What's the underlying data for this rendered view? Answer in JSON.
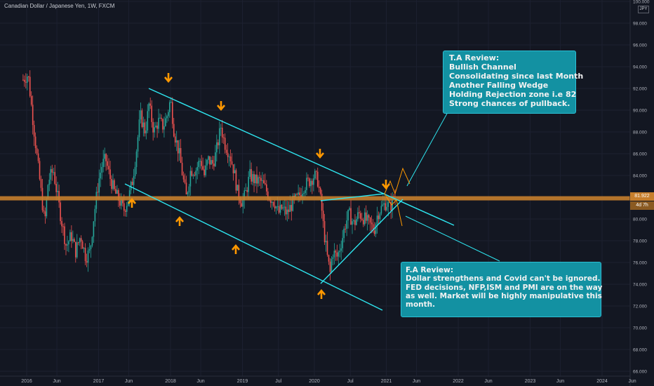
{
  "header": {
    "title": "Canadian Dollar / Japanese Yen, 1W, FXCM",
    "currency": "JPY"
  },
  "price_tags": {
    "last": "81.922",
    "countdown": "4d 7h"
  },
  "annotations": {
    "ta_review": [
      "T.A Review:",
      "Bullish Channel",
      "Consolidating since last Month",
      "Another Falling Wedge",
      "Holding Rejection zone i.e 82",
      "Strong chances of pullback."
    ],
    "fa_review": [
      "F.A Review:",
      "Dollar strengthens and Covid can't be ignored.",
      "FED decisions, NFP,ISM and PMI are on the way",
      "as well. Market will be highly manipulative this",
      "month."
    ]
  },
  "colors": {
    "background": "#131722",
    "up": "#26a69a",
    "down": "#ef5350",
    "trendline": "#2ee6f0",
    "zone": "#c67e2c",
    "arrow": "#ff9800",
    "box": "#1391a2"
  },
  "chart_data": {
    "type": "candlestick",
    "title": "Canadian Dollar / Japanese Yen, 1W, FXCM",
    "x_ticks": [
      "2016",
      "Jun",
      "2017",
      "Jun",
      "2018",
      "Jun",
      "2019",
      "Jul",
      "2020",
      "Jul",
      "2021",
      "Jun",
      "2022",
      "Jun",
      "2023",
      "Jun",
      "2024",
      "Jun"
    ],
    "y_ticks": [
      "100.000",
      "98.000",
      "96.000",
      "94.000",
      "92.000",
      "90.000",
      "88.000",
      "86.000",
      "84.000",
      "82.000",
      "80.000",
      "78.000",
      "76.000",
      "74.000",
      "72.000",
      "70.000",
      "68.000",
      "66.000"
    ],
    "ylim": [
      66,
      100
    ],
    "last_price": 81.922,
    "resistance_zone": 81.9,
    "path": [
      [
        2015.95,
        92.8
      ],
      [
        2016.02,
        93.3
      ],
      [
        2016.08,
        89.5
      ],
      [
        2016.13,
        86.5
      ],
      [
        2016.2,
        82.5
      ],
      [
        2016.25,
        79.5
      ],
      [
        2016.3,
        83.5
      ],
      [
        2016.37,
        84.5
      ],
      [
        2016.43,
        82.0
      ],
      [
        2016.48,
        80.0
      ],
      [
        2016.55,
        77.5
      ],
      [
        2016.62,
        78.5
      ],
      [
        2016.68,
        77.0
      ],
      [
        2016.75,
        78.5
      ],
      [
        2016.82,
        76.5
      ],
      [
        2016.88,
        77.0
      ],
      [
        2016.93,
        80.0
      ],
      [
        2017.0,
        83.5
      ],
      [
        2017.05,
        85.0
      ],
      [
        2017.1,
        85.5
      ],
      [
        2017.15,
        84.0
      ],
      [
        2017.22,
        82.5
      ],
      [
        2017.28,
        81.8
      ],
      [
        2017.35,
        80.8
      ],
      [
        2017.42,
        82.0
      ],
      [
        2017.47,
        83.5
      ],
      [
        2017.52,
        86.0
      ],
      [
        2017.58,
        89.5
      ],
      [
        2017.65,
        88.0
      ],
      [
        2017.7,
        90.5
      ],
      [
        2017.77,
        88.0
      ],
      [
        2017.83,
        89.0
      ],
      [
        2017.9,
        88.5
      ],
      [
        2017.95,
        89.5
      ],
      [
        2018.0,
        91.0
      ],
      [
        2018.05,
        88.0
      ],
      [
        2018.12,
        86.0
      ],
      [
        2018.18,
        83.5
      ],
      [
        2018.22,
        82.0
      ],
      [
        2018.28,
        84.5
      ],
      [
        2018.35,
        84.5
      ],
      [
        2018.42,
        85.5
      ],
      [
        2018.47,
        84.0
      ],
      [
        2018.52,
        85.5
      ],
      [
        2018.58,
        85.0
      ],
      [
        2018.63,
        86.0
      ],
      [
        2018.7,
        88.5
      ],
      [
        2018.75,
        87.0
      ],
      [
        2018.82,
        86.0
      ],
      [
        2018.88,
        84.5
      ],
      [
        2018.93,
        82.5
      ],
      [
        2019.0,
        81.5
      ],
      [
        2019.05,
        82.5
      ],
      [
        2019.1,
        84.0
      ],
      [
        2019.18,
        83.5
      ],
      [
        2019.25,
        83.5
      ],
      [
        2019.3,
        83.0
      ],
      [
        2019.38,
        82.0
      ],
      [
        2019.45,
        81.5
      ],
      [
        2019.5,
        80.5
      ],
      [
        2019.55,
        81.0
      ],
      [
        2019.62,
        80.5
      ],
      [
        2019.7,
        81.5
      ],
      [
        2019.78,
        82.0
      ],
      [
        2019.85,
        83.0
      ],
      [
        2019.93,
        83.5
      ],
      [
        2020.0,
        84.0
      ],
      [
        2020.05,
        83.5
      ],
      [
        2020.1,
        81.0
      ],
      [
        2020.13,
        79.0
      ],
      [
        2020.18,
        76.5
      ],
      [
        2020.22,
        75.0
      ],
      [
        2020.25,
        77.0
      ],
      [
        2020.32,
        76.5
      ],
      [
        2020.38,
        78.0
      ],
      [
        2020.43,
        79.5
      ],
      [
        2020.48,
        80.5
      ],
      [
        2020.55,
        79.5
      ],
      [
        2020.62,
        80.5
      ],
      [
        2020.7,
        80.0
      ],
      [
        2020.77,
        79.5
      ],
      [
        2020.83,
        79.0
      ],
      [
        2020.88,
        80.5
      ],
      [
        2020.93,
        81.0
      ],
      [
        2021.0,
        81.5
      ],
      [
        2021.05,
        81.0
      ],
      [
        2021.1,
        82.0
      ],
      [
        2021.13,
        81.9
      ]
    ]
  }
}
